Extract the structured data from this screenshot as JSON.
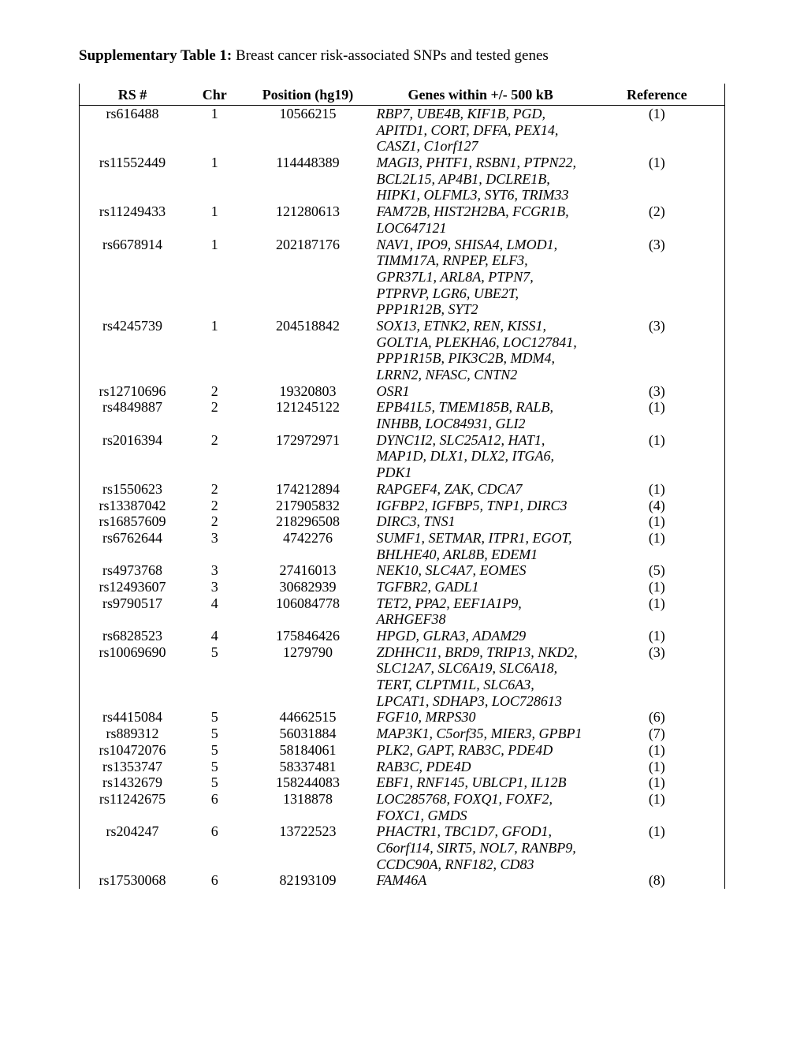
{
  "title_bold": "Supplementary Table 1: ",
  "title_rest": "Breast cancer risk-associated SNPs and tested genes",
  "headers": {
    "rs": "RS #",
    "chr": "Chr",
    "pos": "Position (hg19)",
    "genes": "Genes within +/- 500 kB",
    "ref": "Reference"
  },
  "rows": [
    {
      "rs": "rs616488",
      "chr": "1",
      "pos": "10566215",
      "genes": "RBP7, UBE4B, KIF1B, PGD, APITD1, CORT, DFFA, PEX14, CASZ1, C1orf127",
      "ref": "(1)"
    },
    {
      "rs": "rs11552449",
      "chr": "1",
      "pos": "114448389",
      "genes": "MAGI3, PHTF1, RSBN1, PTPN22, BCL2L15, AP4B1, DCLRE1B, HIPK1, OLFML3, SYT6, TRIM33",
      "ref": "(1)"
    },
    {
      "rs": "rs11249433",
      "chr": "1",
      "pos": "121280613",
      "genes": "FAM72B, HIST2H2BA, FCGR1B, LOC647121",
      "ref": "(2)"
    },
    {
      "rs": "rs6678914",
      "chr": "1",
      "pos": "202187176",
      "genes": "NAV1, IPO9, SHISA4, LMOD1, TIMM17A, RNPEP, ELF3, GPR37L1, ARL8A, PTPN7, PTPRVP, LGR6, UBE2T, PPP1R12B, SYT2",
      "ref": "(3)"
    },
    {
      "rs": "rs4245739",
      "chr": "1",
      "pos": "204518842",
      "genes": "SOX13, ETNK2, REN, KISS1, GOLT1A, PLEKHA6, LOC127841, PPP1R15B, PIK3C2B, MDM4, LRRN2, NFASC, CNTN2",
      "ref": "(3)"
    },
    {
      "rs": "rs12710696",
      "chr": "2",
      "pos": "19320803",
      "genes": "OSR1",
      "ref": "(3)"
    },
    {
      "rs": "rs4849887",
      "chr": "2",
      "pos": "121245122",
      "genes": "EPB41L5, TMEM185B, RALB, INHBB, LOC84931, GLI2",
      "ref": "(1)"
    },
    {
      "rs": "rs2016394",
      "chr": "2",
      "pos": "172972971",
      "genes": "DYNC1I2, SLC25A12, HAT1, MAP1D, DLX1, DLX2, ITGA6, PDK1",
      "ref": "(1)"
    },
    {
      "rs": "rs1550623",
      "chr": "2",
      "pos": "174212894",
      "genes": "RAPGEF4, ZAK, CDCA7",
      "ref": "(1)"
    },
    {
      "rs": "rs13387042",
      "chr": "2",
      "pos": "217905832",
      "genes": "IGFBP2, IGFBP5, TNP1, DIRC3",
      "ref": "(4)"
    },
    {
      "rs": "rs16857609",
      "chr": "2",
      "pos": "218296508",
      "genes": "DIRC3, TNS1",
      "ref": "(1)"
    },
    {
      "rs": "rs6762644",
      "chr": "3",
      "pos": "4742276",
      "genes": "SUMF1, SETMAR, ITPR1, EGOT, BHLHE40, ARL8B, EDEM1",
      "ref": "(1)"
    },
    {
      "rs": "rs4973768",
      "chr": "3",
      "pos": "27416013",
      "genes": "NEK10, SLC4A7, EOMES",
      "ref": "(5)"
    },
    {
      "rs": "rs12493607",
      "chr": "3",
      "pos": "30682939",
      "genes": "TGFBR2, GADL1",
      "ref": "(1)"
    },
    {
      "rs": "rs9790517",
      "chr": "4",
      "pos": "106084778",
      "genes": "TET2, PPA2, EEF1A1P9, ARHGEF38",
      "ref": "(1)"
    },
    {
      "rs": "rs6828523",
      "chr": "4",
      "pos": "175846426",
      "genes": "HPGD, GLRA3, ADAM29",
      "ref": "(1)"
    },
    {
      "rs": "rs10069690",
      "chr": "5",
      "pos": "1279790",
      "genes": "ZDHHC11, BRD9, TRIP13, NKD2, SLC12A7, SLC6A19, SLC6A18, TERT, CLPTM1L, SLC6A3, LPCAT1, SDHAP3, LOC728613",
      "ref": "(3)"
    },
    {
      "rs": "rs4415084",
      "chr": "5",
      "pos": "44662515",
      "genes": "FGF10, MRPS30",
      "ref": "(6)"
    },
    {
      "rs": "rs889312",
      "chr": "5",
      "pos": "56031884",
      "genes": "MAP3K1, C5orf35, MIER3, GPBP1",
      "ref": "(7)"
    },
    {
      "rs": "rs10472076",
      "chr": "5",
      "pos": "58184061",
      "genes": "PLK2, GAPT, RAB3C, PDE4D",
      "ref": "(1)"
    },
    {
      "rs": "rs1353747",
      "chr": "5",
      "pos": "58337481",
      "genes": "RAB3C, PDE4D",
      "ref": "(1)"
    },
    {
      "rs": "rs1432679",
      "chr": "5",
      "pos": "158244083",
      "genes": "EBF1, RNF145, UBLCP1, IL12B",
      "ref": "(1)"
    },
    {
      "rs": "rs11242675",
      "chr": "6",
      "pos": "1318878",
      "genes": "LOC285768, FOXQ1, FOXF2, FOXC1, GMDS",
      "ref": "(1)"
    },
    {
      "rs": "rs204247",
      "chr": "6",
      "pos": "13722523",
      "genes": "PHACTR1, TBC1D7, GFOD1, C6orf114, SIRT5, NOL7, RANBP9, CCDC90A, RNF182, CD83",
      "ref": "(1)"
    },
    {
      "rs": "rs17530068",
      "chr": "6",
      "pos": "82193109",
      "genes": "FAM46A",
      "ref": "(8)"
    }
  ]
}
